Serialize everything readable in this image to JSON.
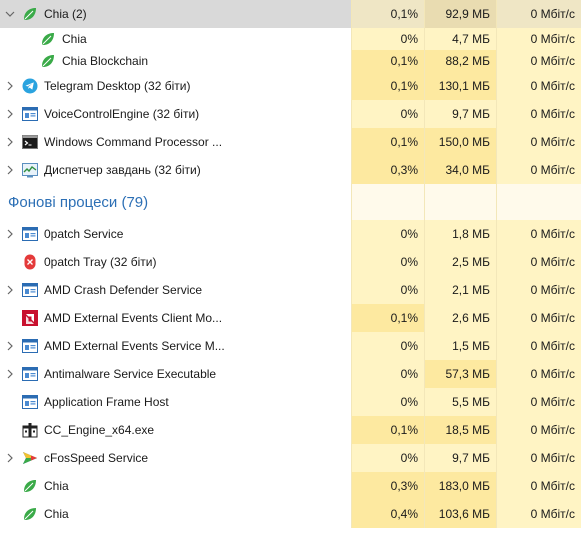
{
  "rows": [
    {
      "kind": "proc",
      "name": "Chia (2)",
      "icon": "chia-leaf-icon",
      "expanded": true,
      "cpu": "0,1%",
      "mem": "92,9 МБ",
      "net": "0 Мбіт/с",
      "selected": true
    },
    {
      "kind": "child",
      "name": "Chia",
      "icon": "chia-leaf-icon",
      "cpu": "0%",
      "mem": "4,7 МБ",
      "net": "0 Мбіт/с"
    },
    {
      "kind": "child",
      "name": "Chia Blockchain",
      "icon": "chia-leaf-icon",
      "cpu": "0,1%",
      "mem": "88,2 МБ",
      "net": "0 Мбіт/с"
    },
    {
      "kind": "proc",
      "name": "Telegram Desktop (32 біти)",
      "icon": "telegram-icon",
      "cpu": "0,1%",
      "mem": "130,1 МБ",
      "net": "0 Мбіт/с"
    },
    {
      "kind": "proc",
      "name": "VoiceControlEngine (32 біти)",
      "icon": "app-window-icon",
      "cpu": "0%",
      "mem": "9,7 МБ",
      "net": "0 Мбіт/с"
    },
    {
      "kind": "proc",
      "name": "Windows Command Processor ...",
      "icon": "cmd-icon",
      "cpu": "0,1%",
      "mem": "150,0 МБ",
      "net": "0 Мбіт/с"
    },
    {
      "kind": "proc",
      "name": "Диспетчер завдань (32 біти)",
      "icon": "task-manager-icon",
      "cpu": "0,3%",
      "mem": "34,0 МБ",
      "net": "0 Мбіт/с"
    },
    {
      "kind": "group",
      "name": "Фонові процеси (79)"
    },
    {
      "kind": "proc",
      "name": "0patch Service",
      "icon": "app-window-icon",
      "cpu": "0%",
      "mem": "1,8 МБ",
      "net": "0 Мбіт/с"
    },
    {
      "kind": "proc",
      "name": "0patch Tray (32 біти)",
      "icon": "0patch-tray-icon",
      "noExpand": true,
      "cpu": "0%",
      "mem": "2,5 МБ",
      "net": "0 Мбіт/с"
    },
    {
      "kind": "proc",
      "name": "AMD Crash Defender Service",
      "icon": "app-window-icon",
      "cpu": "0%",
      "mem": "2,1 МБ",
      "net": "0 Мбіт/с"
    },
    {
      "kind": "proc",
      "name": "AMD External Events Client Mo...",
      "icon": "amd-icon",
      "noExpand": true,
      "cpu": "0,1%",
      "mem": "2,6 МБ",
      "net": "0 Мбіт/с"
    },
    {
      "kind": "proc",
      "name": "AMD External Events Service M...",
      "icon": "app-window-icon",
      "cpu": "0%",
      "mem": "1,5 МБ",
      "net": "0 Мбіт/с"
    },
    {
      "kind": "proc",
      "name": "Antimalware Service Executable",
      "icon": "app-window-icon",
      "cpu": "0%",
      "mem": "57,3 МБ",
      "net": "0 Мбіт/с"
    },
    {
      "kind": "proc",
      "name": "Application Frame Host",
      "icon": "app-window-icon",
      "noExpand": true,
      "cpu": "0%",
      "mem": "5,5 МБ",
      "net": "0 Мбіт/с"
    },
    {
      "kind": "proc",
      "name": "CC_Engine_x64.exe",
      "icon": "cc-engine-icon",
      "noExpand": true,
      "cpu": "0,1%",
      "mem": "18,5 МБ",
      "net": "0 Мбіт/с"
    },
    {
      "kind": "proc",
      "name": "cFosSpeed Service",
      "icon": "cfosspeed-icon",
      "cpu": "0%",
      "mem": "9,7 МБ",
      "net": "0 Мбіт/с"
    },
    {
      "kind": "proc",
      "name": "Chia",
      "icon": "chia-leaf-icon",
      "noExpand": true,
      "cpu": "0,3%",
      "mem": "183,0 МБ",
      "net": "0 Мбіт/с"
    },
    {
      "kind": "proc",
      "name": "Chia",
      "icon": "chia-leaf-icon",
      "noExpand": true,
      "cpu": "0,4%",
      "mem": "103,6 МБ",
      "net": "0 Мбіт/с"
    }
  ],
  "colors": {
    "selected": "#d9d9d9",
    "heat_light": "#fff4c4",
    "heat_strong": "#fde9a0",
    "group_title": "#2c6fb5",
    "chia_green": "#3aaa48"
  }
}
